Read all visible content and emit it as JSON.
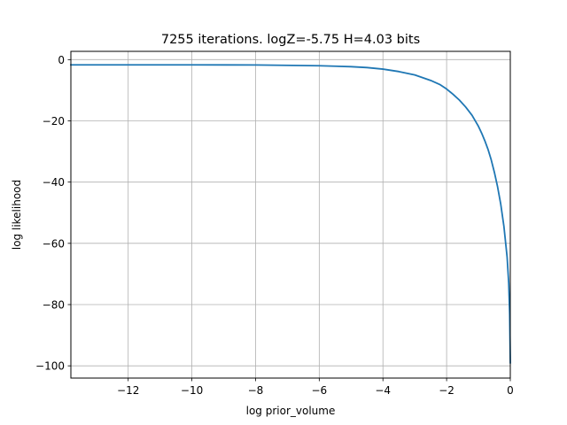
{
  "chart_data": {
    "type": "line",
    "title": "7255 iterations. logZ=-5.75 H=4.03 bits",
    "xlabel": "log prior_volume",
    "ylabel": "log likelihood",
    "xlim": [
      -13.8,
      0
    ],
    "ylim": [
      -104,
      2.7
    ],
    "x_ticks": [
      -12,
      -10,
      -8,
      -6,
      -4,
      -2,
      0
    ],
    "x_tick_labels": [
      "−12",
      "−10",
      "−8",
      "−6",
      "−4",
      "−2",
      "0"
    ],
    "y_ticks": [
      0,
      -20,
      -40,
      -60,
      -80,
      -100
    ],
    "y_tick_labels": [
      "0",
      "−20",
      "−40",
      "−60",
      "−80",
      "−100"
    ],
    "grid": true,
    "series": [
      {
        "color": "#1f77b4",
        "x": [
          -13.8,
          -12,
          -10,
          -8,
          -6,
          -5,
          -4.5,
          -4,
          -3.5,
          -3,
          -2.5,
          -2.2,
          -2,
          -1.8,
          -1.6,
          -1.4,
          -1.2,
          -1.0,
          -0.9,
          -0.8,
          -0.7,
          -0.6,
          -0.5,
          -0.4,
          -0.3,
          -0.2,
          -0.1,
          -0.05,
          -0.02,
          0
        ],
        "y": [
          -1.7,
          -1.7,
          -1.7,
          -1.75,
          -2.0,
          -2.3,
          -2.6,
          -3.1,
          -3.9,
          -5.0,
          -6.8,
          -8.2,
          -9.6,
          -11.3,
          -13.2,
          -15.5,
          -18.2,
          -21.8,
          -24.0,
          -26.5,
          -29.3,
          -32.7,
          -36.8,
          -41.5,
          -47.2,
          -54.5,
          -64.5,
          -73.0,
          -83.0,
          -99.0
        ]
      }
    ]
  }
}
